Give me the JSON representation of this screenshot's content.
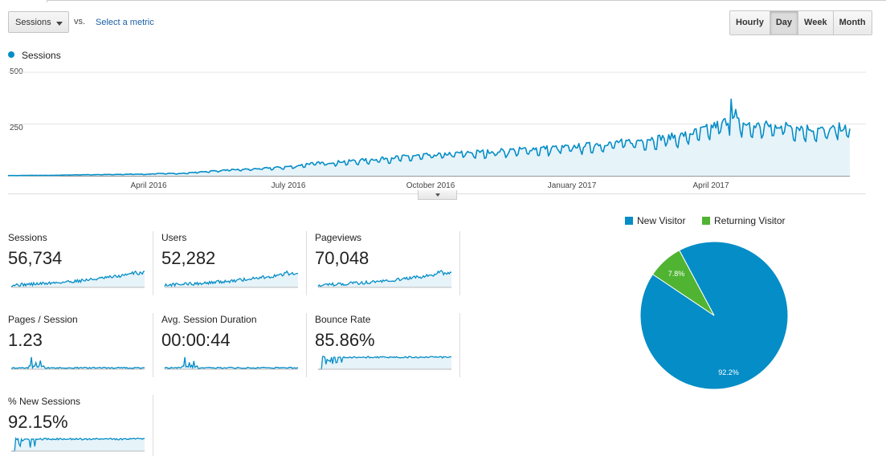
{
  "colors": {
    "accent": "#058dc7",
    "area": "#e6f3f9",
    "green": "#50b432",
    "grid": "#e6e6e6"
  },
  "toolbar": {
    "metric_select": "Sessions",
    "vs_label": "vs.",
    "select_metric_link": "Select a metric",
    "time_buttons": [
      {
        "label": "Hourly",
        "active": false
      },
      {
        "label": "Day",
        "active": true
      },
      {
        "label": "Week",
        "active": false
      },
      {
        "label": "Month",
        "active": false
      }
    ]
  },
  "main_chart": {
    "legend": "Sessions",
    "y_ticks": [
      "500",
      "250"
    ],
    "x_ticks": [
      "April 2016",
      "July 2016",
      "October 2016",
      "January 2017",
      "April 2017"
    ]
  },
  "chart_data": {
    "type": "area",
    "series_name": "Sessions",
    "ylim": [
      0,
      500
    ],
    "y_ticks": [
      250,
      500
    ],
    "x_tick_labels": [
      "April 2016",
      "July 2016",
      "October 2016",
      "January 2017",
      "April 2017"
    ],
    "weekly_values": [
      1,
      1,
      2,
      2,
      2,
      3,
      4,
      5,
      5,
      6,
      6,
      7,
      8,
      7,
      10,
      12,
      10,
      14,
      18,
      22,
      25,
      28,
      30,
      32,
      35,
      38,
      42,
      45,
      55,
      60,
      60,
      65,
      68,
      72,
      75,
      80,
      84,
      88,
      92,
      95,
      98,
      100,
      105,
      108,
      110,
      112,
      115,
      118,
      122,
      125,
      128,
      130,
      132,
      135,
      140,
      145,
      150,
      155,
      158,
      162,
      170,
      175,
      180,
      185,
      195,
      210,
      225,
      245,
      260,
      240,
      230,
      235,
      230,
      240,
      225,
      220,
      215,
      210,
      225,
      215
    ],
    "max_peak": 370,
    "grid": true
  },
  "metrics": [
    {
      "name": "Sessions",
      "value": "56,734",
      "spark": "trend"
    },
    {
      "name": "Users",
      "value": "52,282",
      "spark": "trend"
    },
    {
      "name": "Pageviews",
      "value": "70,048",
      "spark": "trend"
    },
    {
      "name": "Pages / Session",
      "value": "1.23",
      "spark": "flat-spike"
    },
    {
      "name": "Avg. Session Duration",
      "value": "00:00:44",
      "spark": "flat-spike"
    },
    {
      "name": "Bounce Rate",
      "value": "85.86%",
      "spark": "high"
    },
    {
      "name": "% New Sessions",
      "value": "92.15%",
      "spark": "high"
    }
  ],
  "pie": {
    "legend": [
      {
        "label": "New Visitor",
        "color": "#058dc7"
      },
      {
        "label": "Returning Visitor",
        "color": "#50b432"
      }
    ],
    "slices": [
      {
        "label": "New Visitor",
        "value": 92.2,
        "text": "92.2%"
      },
      {
        "label": "Returning Visitor",
        "value": 7.8,
        "text": "7.8%"
      }
    ]
  }
}
